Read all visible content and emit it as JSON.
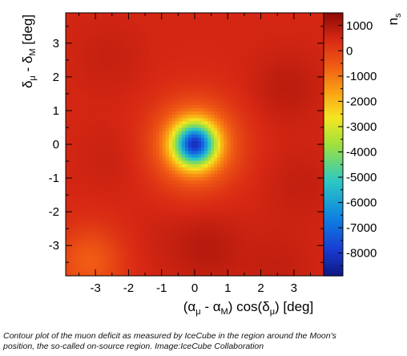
{
  "chart_data": {
    "type": "heatmap",
    "xlabel_parts": [
      "(α",
      "μ",
      " - α",
      "M",
      ") cos(δ",
      "μ",
      ") [deg]"
    ],
    "ylabel_parts": [
      "δ",
      "μ",
      " - δ",
      "M",
      " [deg]"
    ],
    "colorbar_label_parts": [
      "n",
      "s"
    ],
    "x_ticks": [
      "-3",
      "-2",
      "-1",
      "0",
      "1",
      "2",
      "3"
    ],
    "x_tick_values": [
      -3,
      -2,
      -1,
      0,
      1,
      2,
      3
    ],
    "y_ticks": [
      "3",
      "2",
      "1",
      "0",
      "-1",
      "-2",
      "-3"
    ],
    "y_tick_values": [
      3,
      2,
      1,
      0,
      -1,
      -2,
      -3
    ],
    "xlim": [
      -3.9,
      3.9
    ],
    "ylim": [
      -3.9,
      3.9
    ],
    "colorbar_ticks": [
      "1000",
      "0",
      "-1000",
      "-2000",
      "-3000",
      "-4000",
      "-5000",
      "-6000",
      "-7000",
      "-8000"
    ],
    "colorbar_tick_values": [
      1000,
      0,
      -1000,
      -2000,
      -3000,
      -4000,
      -5000,
      -6000,
      -7000,
      -8000
    ],
    "zlim": [
      -8900,
      1500
    ],
    "deficit_center": {
      "x": 0.0,
      "y": 0.0,
      "value": -8200
    },
    "background_level": 500,
    "fluctuations": [
      {
        "x": -2.6,
        "y": 2.6,
        "value": 700
      },
      {
        "x": 2.8,
        "y": 1.7,
        "value": 850
      },
      {
        "x": 3.2,
        "y": -1.2,
        "value": 750
      },
      {
        "x": -2.5,
        "y": -0.4,
        "value": 650
      },
      {
        "x": -1.0,
        "y": -2.9,
        "value": 600
      },
      {
        "x": 0.4,
        "y": -3.1,
        "value": 900
      },
      {
        "x": -3.2,
        "y": -3.5,
        "value": -600
      },
      {
        "x": 2.5,
        "y": -3.6,
        "value": 750
      },
      {
        "x": 1.2,
        "y": 3.4,
        "value": 500
      }
    ]
  },
  "caption": {
    "line1": "Contour plot of the muon deficit as measured by IceCube in the region around the Moon's",
    "line2": "position, the so-called on-source region. Image:IceCube Collaboration"
  }
}
